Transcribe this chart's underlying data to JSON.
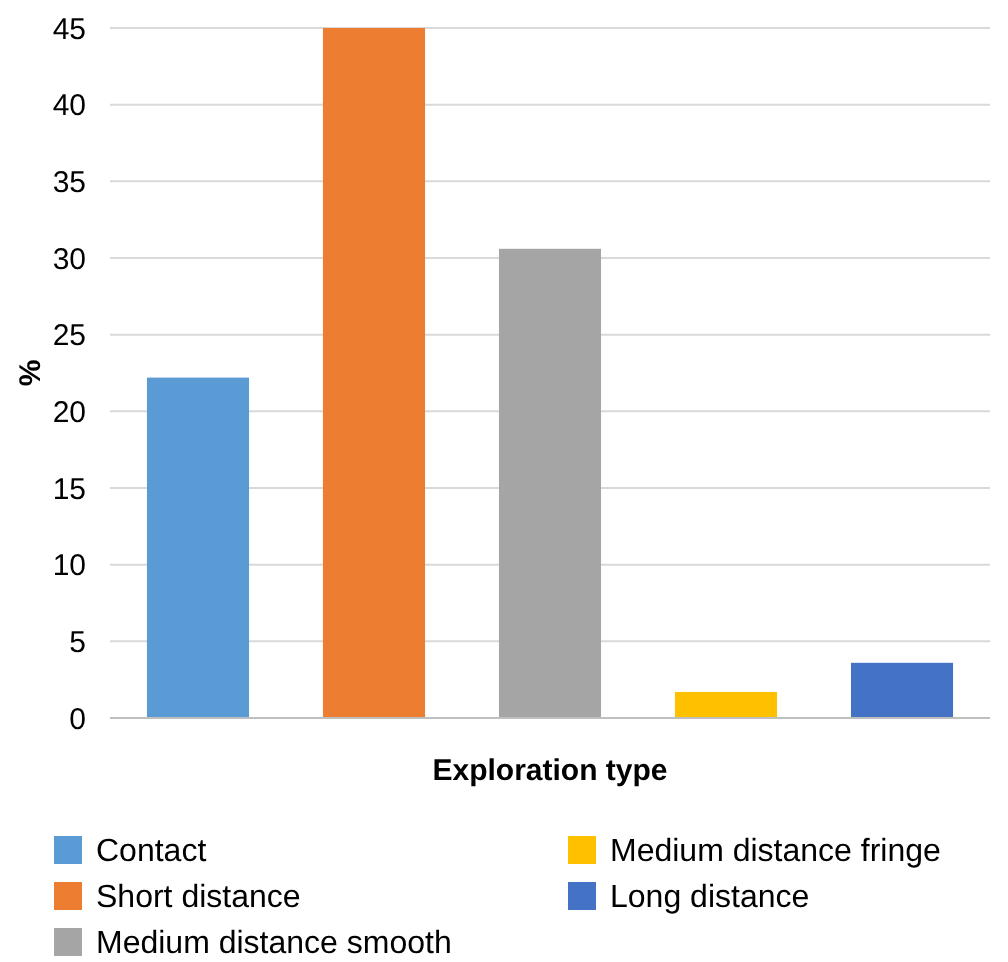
{
  "chart_data": {
    "type": "bar",
    "xlabel": "Exploration type",
    "ylabel": "%",
    "categories": [
      null,
      null,
      null,
      null,
      null
    ],
    "series": [
      {
        "name": "Contact",
        "color": "#5b9bd5",
        "values": [
          22.2,
          null,
          null,
          null,
          null
        ]
      },
      {
        "name": "Short distance",
        "color": "#ed7d31",
        "values": [
          null,
          45,
          null,
          null,
          null
        ]
      },
      {
        "name": "Medium distance smooth",
        "color": "#a5a5a5",
        "values": [
          null,
          null,
          30.6,
          null,
          null
        ]
      },
      {
        "name": "Medium distance fringe",
        "color": "#ffc000",
        "values": [
          null,
          null,
          null,
          1.7,
          null
        ]
      },
      {
        "name": "Long distance",
        "color": "#4472c4",
        "values": [
          null,
          null,
          null,
          null,
          3.6
        ]
      }
    ],
    "ylim": [
      0,
      45
    ],
    "yticks": [
      0,
      5,
      10,
      15,
      20,
      25,
      30,
      35,
      40,
      45
    ],
    "grid": "y",
    "legend": "bottom"
  }
}
